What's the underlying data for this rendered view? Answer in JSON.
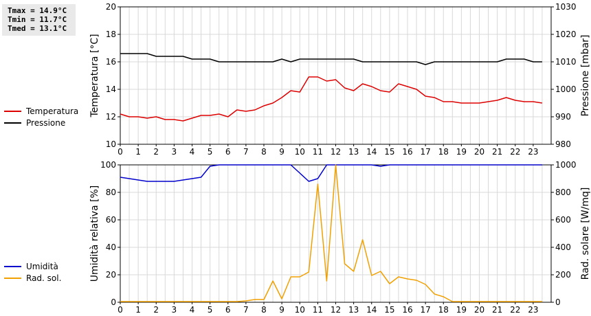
{
  "stats": [
    "Tmax = 14.9°C",
    "Tmin = 11.7°C",
    "Tmed = 13.1°C"
  ],
  "legend_top": [
    {
      "label": "Temperatura",
      "color": "#dd0000"
    },
    {
      "label": "Pressione",
      "color": "#000000"
    }
  ],
  "legend_bottom": [
    {
      "label": "Umidità",
      "color": "#0000cc"
    },
    {
      "label": "Rad. sol.",
      "color": "#f0a000"
    }
  ],
  "chart_data": [
    {
      "type": "line",
      "xlim": [
        0,
        24
      ],
      "xticks": [
        "0",
        "1",
        "2",
        "3",
        "4",
        "5",
        "6",
        "7",
        "8",
        "9",
        "10",
        "11",
        "12",
        "13",
        "14",
        "15",
        "16",
        "17",
        "18",
        "19",
        "20",
        "21",
        "22",
        "23"
      ],
      "ylabel": "Temperatura [°C]",
      "ylim": [
        10,
        20
      ],
      "yticks": [
        "10",
        "12",
        "14",
        "16",
        "18",
        "20"
      ],
      "y2label": "Pressione [mbar]",
      "y2lim": [
        980,
        1030
      ],
      "y2ticks": [
        "980",
        "990",
        "1000",
        "1010",
        "1020",
        "1030"
      ],
      "grid": true,
      "series": [
        {
          "name": "Temperatura",
          "axis": "left",
          "color": "#dd0000",
          "x": [
            0,
            0.5,
            1,
            1.5,
            2,
            2.5,
            3,
            3.5,
            4,
            4.5,
            5,
            5.5,
            6,
            6.5,
            7,
            7.5,
            8,
            8.5,
            9,
            9.5,
            10,
            10.5,
            11,
            11.5,
            12,
            12.5,
            13,
            13.5,
            14,
            14.5,
            15,
            15.5,
            16,
            16.5,
            17,
            17.5,
            18,
            18.5,
            19,
            19.5,
            20,
            20.5,
            21,
            21.5,
            22,
            22.5,
            23,
            23.5
          ],
          "values": [
            12.2,
            12.0,
            12.0,
            11.9,
            12.0,
            11.8,
            11.8,
            11.7,
            11.9,
            12.1,
            12.1,
            12.2,
            12.0,
            12.5,
            12.4,
            12.5,
            12.8,
            13.0,
            13.4,
            13.9,
            13.8,
            14.9,
            14.9,
            14.6,
            14.7,
            14.1,
            13.9,
            14.4,
            14.2,
            13.9,
            13.8,
            14.4,
            14.2,
            14.0,
            13.5,
            13.4,
            13.1,
            13.1,
            13.0,
            13.0,
            13.0,
            13.1,
            13.2,
            13.4,
            13.2,
            13.1,
            13.1,
            13.0
          ]
        },
        {
          "name": "Pressione",
          "axis": "right",
          "color": "#000000",
          "x": [
            0,
            0.5,
            1,
            1.5,
            2,
            2.5,
            3,
            3.5,
            4,
            4.5,
            5,
            5.5,
            6,
            6.5,
            7,
            7.5,
            8,
            8.5,
            9,
            9.5,
            10,
            10.5,
            11,
            11.5,
            12,
            12.5,
            13,
            13.5,
            14,
            14.5,
            15,
            15.5,
            16,
            16.5,
            17,
            17.5,
            18,
            18.5,
            19,
            19.5,
            20,
            20.5,
            21,
            21.5,
            22,
            22.5,
            23,
            23.5
          ],
          "values": [
            1013,
            1013,
            1013,
            1013,
            1012,
            1012,
            1012,
            1012,
            1011,
            1011,
            1011,
            1010,
            1010,
            1010,
            1010,
            1010,
            1010,
            1010,
            1011,
            1010,
            1011,
            1011,
            1011,
            1011,
            1011,
            1011,
            1011,
            1010,
            1010,
            1010,
            1010,
            1010,
            1010,
            1010,
            1009,
            1010,
            1010,
            1010,
            1010,
            1010,
            1010,
            1010,
            1010,
            1011,
            1011,
            1011,
            1010,
            1010
          ]
        }
      ]
    },
    {
      "type": "line",
      "xlim": [
        0,
        24
      ],
      "xticks": [
        "0",
        "1",
        "2",
        "3",
        "4",
        "5",
        "6",
        "7",
        "8",
        "9",
        "10",
        "11",
        "12",
        "13",
        "14",
        "15",
        "16",
        "17",
        "18",
        "19",
        "20",
        "21",
        "22",
        "23"
      ],
      "ylabel": "Umidità relativa [%]",
      "ylim": [
        0,
        100
      ],
      "yticks": [
        "0",
        "20",
        "40",
        "60",
        "80",
        "100"
      ],
      "y2label": "Rad. solare [W/mq]",
      "y2lim": [
        0,
        1000
      ],
      "y2ticks": [
        "0",
        "200",
        "400",
        "600",
        "800",
        "1000"
      ],
      "grid": true,
      "series": [
        {
          "name": "Umidità",
          "axis": "left",
          "color": "#0000cc",
          "x": [
            0,
            0.5,
            1,
            1.5,
            2,
            2.5,
            3,
            3.5,
            4,
            4.5,
            5,
            5.5,
            6,
            6.5,
            7,
            7.5,
            8,
            8.5,
            9,
            9.5,
            10,
            10.5,
            11,
            11.5,
            12,
            12.5,
            13,
            13.5,
            14,
            14.5,
            15,
            15.5,
            16,
            16.5,
            17,
            17.5,
            18,
            18.5,
            19,
            19.5,
            20,
            20.5,
            21,
            21.5,
            22,
            22.5,
            23,
            23.5
          ],
          "values": [
            91,
            90,
            89,
            88,
            88,
            88,
            88,
            89,
            90,
            91,
            99,
            100,
            100,
            100,
            100,
            100,
            100,
            100,
            100,
            100,
            94,
            88,
            90,
            100,
            100,
            100,
            100,
            100,
            100,
            99,
            100,
            100,
            100,
            100,
            100,
            100,
            100,
            100,
            100,
            100,
            100,
            100,
            100,
            100,
            100,
            100,
            100,
            100
          ]
        },
        {
          "name": "Rad. sol.",
          "axis": "right",
          "color": "#f0a000",
          "x": [
            0,
            0.5,
            1,
            1.5,
            2,
            2.5,
            3,
            3.5,
            4,
            4.5,
            5,
            5.5,
            6,
            6.5,
            7,
            7.5,
            8,
            8.5,
            9,
            9.5,
            10,
            10.5,
            11,
            11.5,
            12,
            12.5,
            13,
            13.5,
            14,
            14.5,
            15,
            15.5,
            16,
            16.5,
            17,
            17.5,
            18,
            18.5,
            19,
            19.5,
            20,
            20.5,
            21,
            21.5,
            22,
            22.5,
            23,
            23.5
          ],
          "values": [
            5,
            5,
            5,
            5,
            5,
            5,
            5,
            5,
            5,
            5,
            5,
            5,
            5,
            5,
            10,
            20,
            20,
            155,
            25,
            185,
            185,
            220,
            860,
            155,
            1000,
            280,
            225,
            455,
            195,
            225,
            135,
            185,
            170,
            160,
            130,
            60,
            40,
            5,
            5,
            5,
            5,
            5,
            5,
            5,
            5,
            5,
            5,
            5
          ]
        }
      ]
    }
  ]
}
